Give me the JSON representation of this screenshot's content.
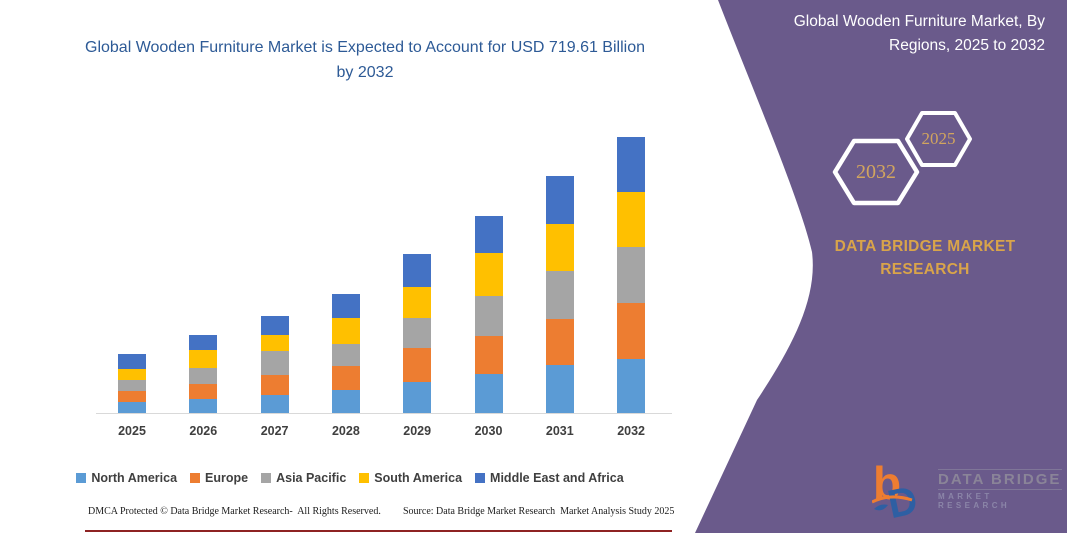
{
  "left_panel": {
    "title": "Global Wooden Furniture Market is Expected to Account for USD 719.61 Billion by 2032",
    "footer_left": "DMCA Protected © Data Bridge Market Research-  All Rights Reserved.",
    "footer_source": "Source: Data Bridge Market Research  Market Analysis Study 2025"
  },
  "chart_data": {
    "type": "bar",
    "stacked": true,
    "title": "Global Wooden Furniture Market is Expected to Account for USD 719.61 Billion by 2032",
    "unit": "USD Billion",
    "categories": [
      "2025",
      "2026",
      "2027",
      "2028",
      "2029",
      "2030",
      "2031",
      "2032"
    ],
    "series": [
      {
        "name": "North America",
        "color": "#5B9BD5",
        "values": [
          28.7,
          37.3,
          47.8,
          59.2,
          80.1,
          101.8,
          125.3,
          140.9
        ]
      },
      {
        "name": "Europe",
        "color": "#ED7D31",
        "values": [
          28.7,
          37.3,
          50.4,
          62.6,
          89.5,
          100.0,
          120.1,
          145.4
        ]
      },
      {
        "name": "Asia Pacific",
        "color": "#A5A5A5",
        "values": [
          29.5,
          42.5,
          63.4,
          58.2,
          78.3,
          104.4,
          126.1,
          146.2
        ]
      },
      {
        "name": "South America",
        "color": "#FFC000",
        "values": [
          28.7,
          46.2,
          42.5,
          67.9,
          80.9,
          110.4,
          121.9,
          143.6
        ]
      },
      {
        "name": "Middle East and Africa",
        "color": "#4472C4",
        "values": [
          37.3,
          39.2,
          49.6,
          61.9,
          85.3,
          98.4,
          124.5,
          143.5
        ]
      }
    ],
    "totals": [
      152.9,
      202.5,
      253.7,
      309.8,
      414.1,
      515.0,
      617.9,
      719.61
    ],
    "annotation": "USD 719.61 Billion by 2032",
    "legend_position": "bottom",
    "grid": false,
    "ylim": [
      0,
      760
    ]
  },
  "right_panel": {
    "heading": "Global Wooden Furniture Market, By Regions, 2025 to 2032",
    "hexagons": [
      {
        "label": "2032"
      },
      {
        "label": "2025"
      }
    ],
    "brand_text": "DATA BRIDGE MARKET RESEARCH",
    "logo": {
      "title": "DATA BRIDGE",
      "subtitle": "MARKET RESEARCH"
    },
    "colors": {
      "panel_purple": "#6a5a8b",
      "gold": "#d9a44a",
      "hex_year_gold": "#d2a55e",
      "logo_orange": "#ED7D31",
      "logo_blue": "#2e5fa3"
    }
  }
}
